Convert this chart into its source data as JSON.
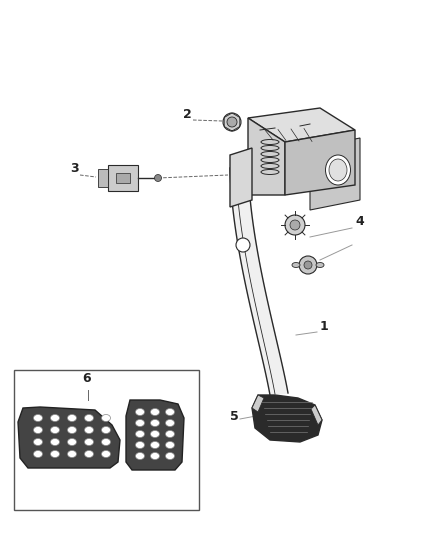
{
  "bg_color": "#ffffff",
  "line_color": "#2a2a2a",
  "figsize": [
    4.38,
    5.33
  ],
  "dpi": 100,
  "label_color": "#222222",
  "label_fontsize": 9,
  "bracket_color": "#e8e8e8",
  "arm_color": "#f0f0f0",
  "pad_dark": "#333333",
  "pad_light": "#cccccc",
  "inset_pad_color": "#444444"
}
